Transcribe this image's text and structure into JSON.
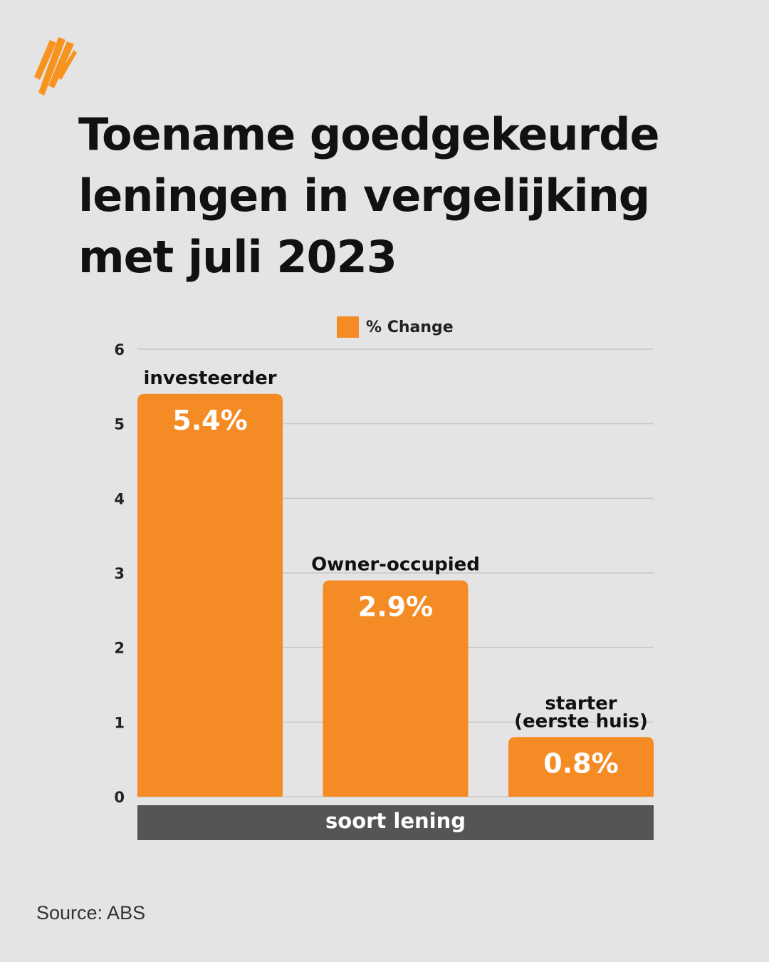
{
  "title_lines": [
    "Toename goedgekeurde",
    "leningen in vergelijking",
    "met juli 2023"
  ],
  "source": "Source: ABS",
  "logo": {
    "icon": "sbs-logo-icon",
    "color": "#f7931e"
  },
  "chart_data": {
    "type": "bar",
    "categories": [
      [
        "investeerder"
      ],
      [
        "Owner-occupied"
      ],
      [
        "starter",
        "(eerste huis)"
      ]
    ],
    "series": [
      {
        "name": "% Change",
        "values": [
          5.4,
          2.9,
          0.8
        ],
        "labels": [
          "5.4%",
          "2.9%",
          "0.8%"
        ]
      }
    ],
    "xlabel": "soort lening",
    "ylim": [
      0,
      6
    ],
    "yticks": [
      0,
      1,
      2,
      3,
      4,
      5,
      6
    ],
    "grid": true,
    "legend": "top-center",
    "colors": {
      "bar": "#f58b24",
      "axis_band": "#555555",
      "grid": "#c8c8c8"
    }
  }
}
